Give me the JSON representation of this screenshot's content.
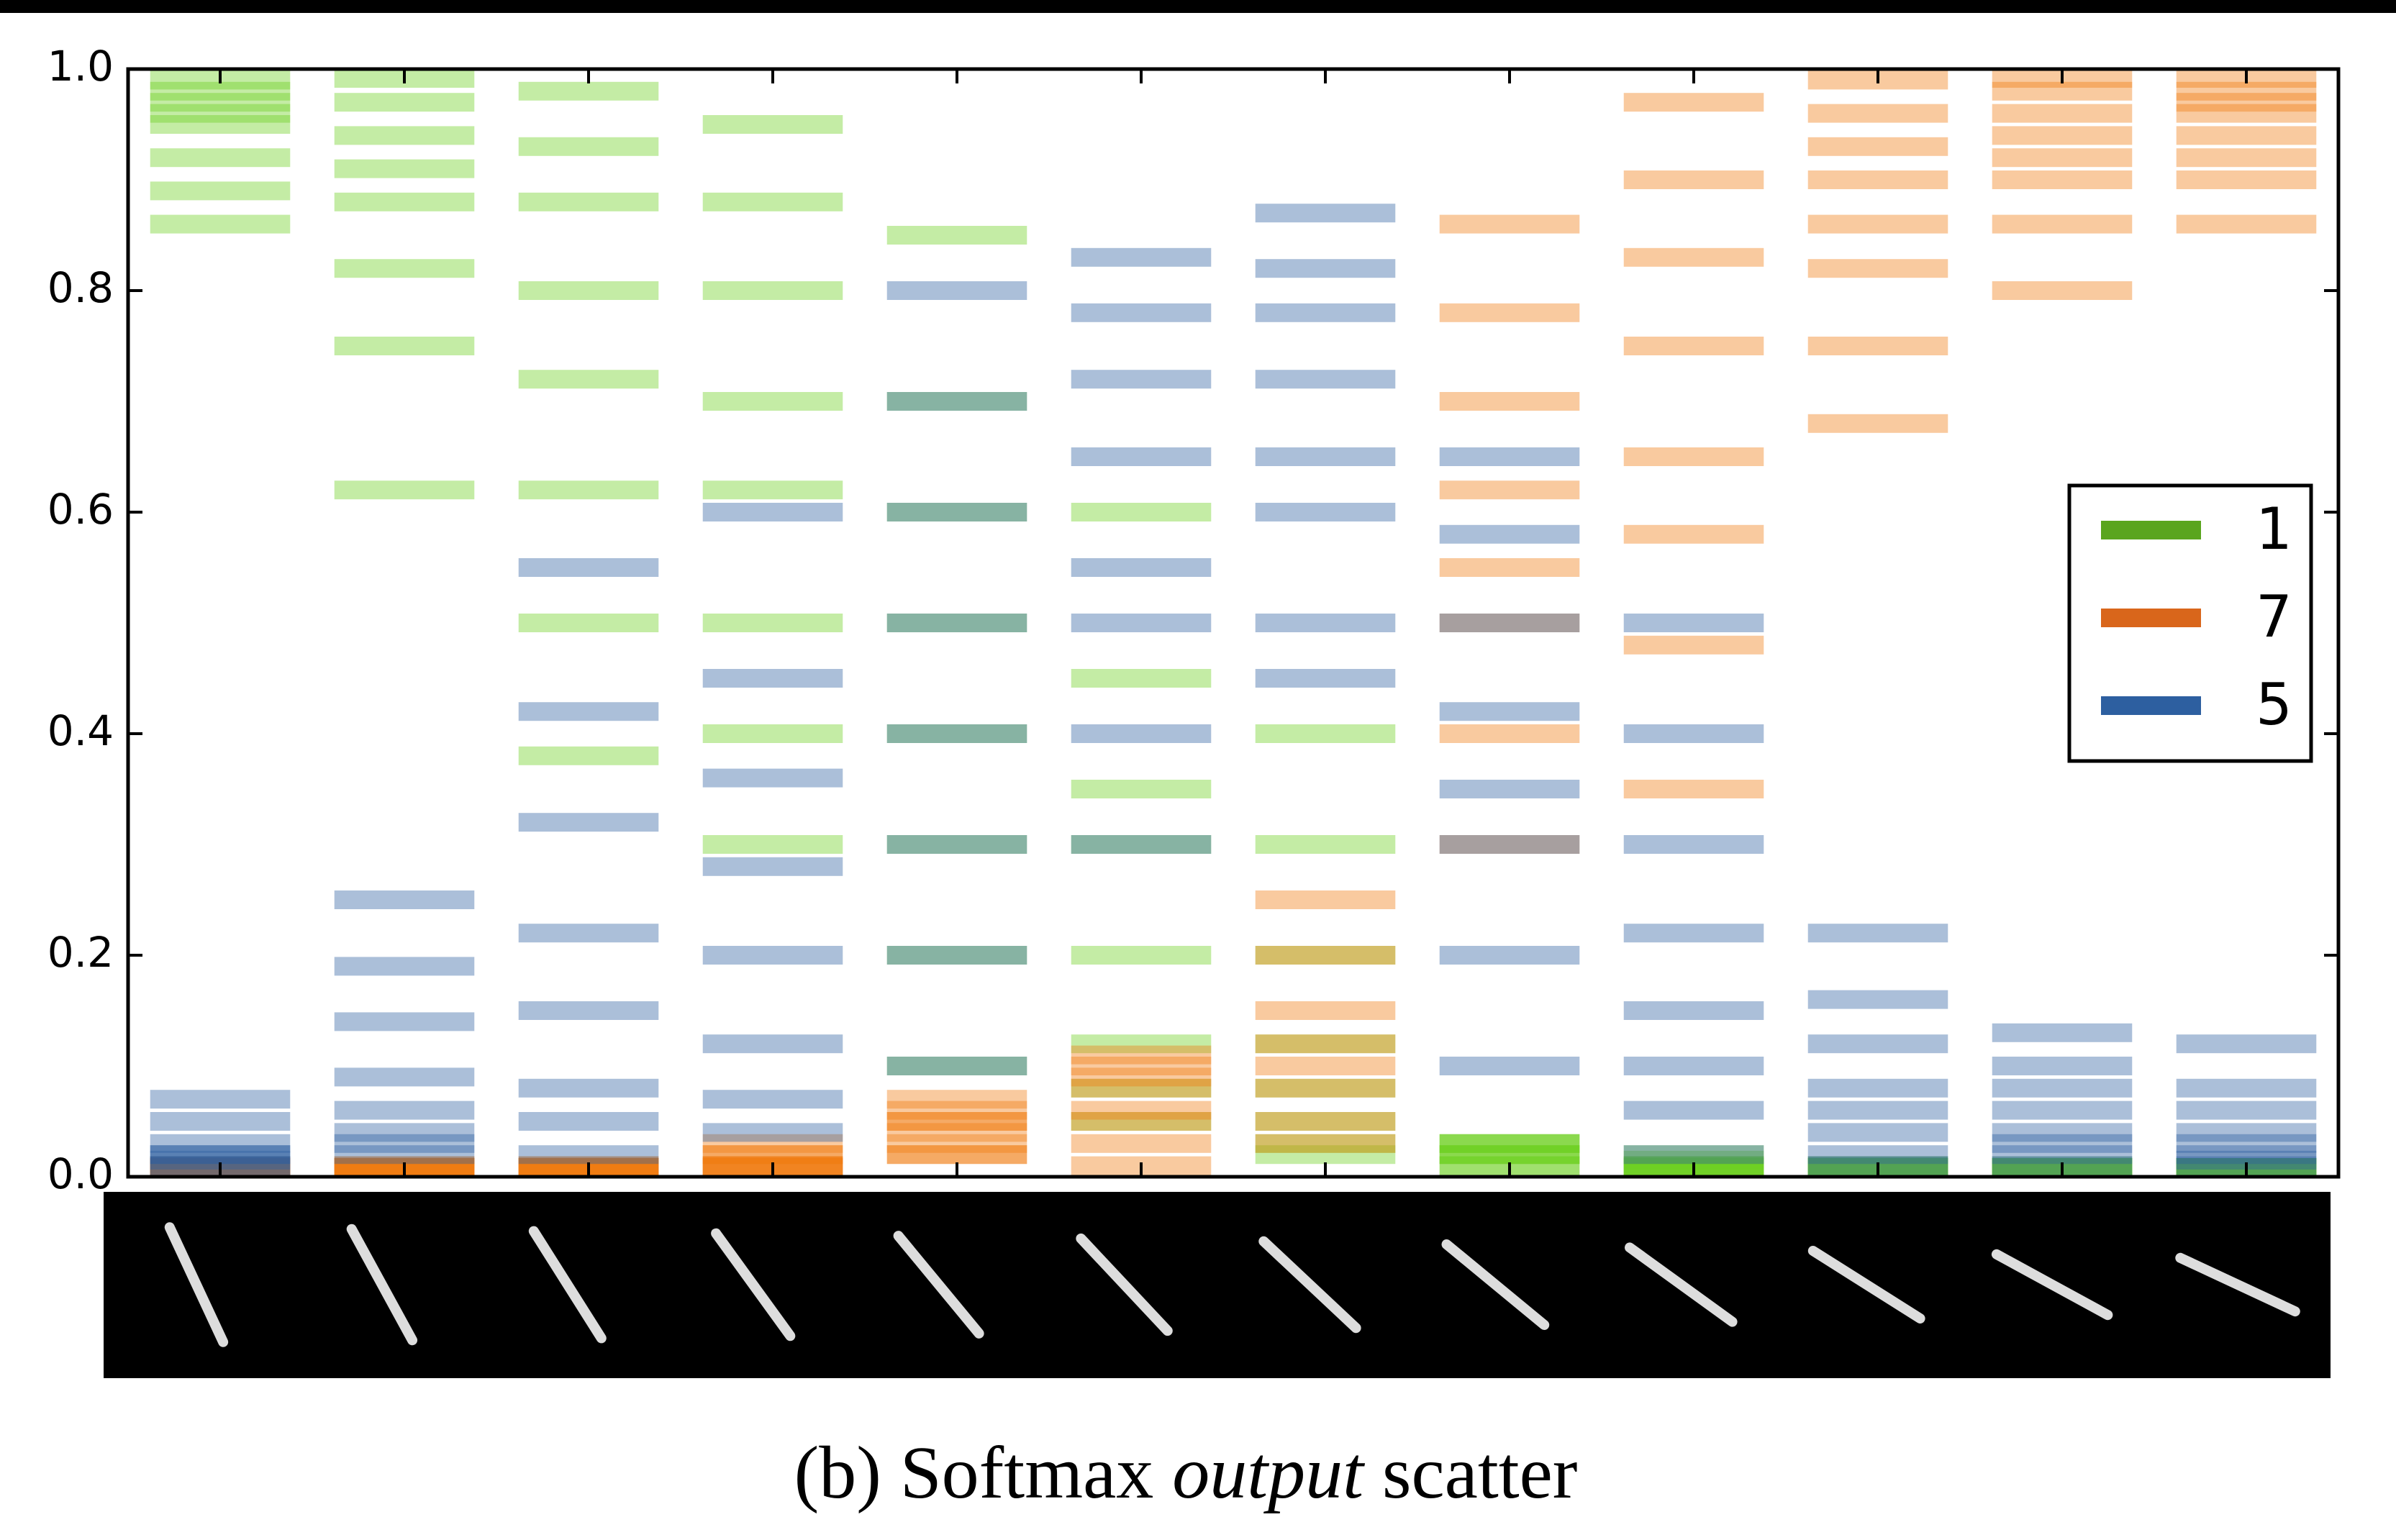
{
  "chart_data": {
    "type": "scatter",
    "caption": {
      "prefix": "(b) Softmax",
      "emphasis": "output",
      "suffix": "scatter"
    },
    "ylim": [
      0,
      1
    ],
    "yticks": [
      {
        "value": 0,
        "label": "0.0"
      },
      0.2,
      0.4,
      0.6,
      0.8,
      {
        "value": 1,
        "label": "1.0"
      }
    ],
    "legend": "right",
    "series": [
      {
        "name": "1",
        "color": "#6ccf1d",
        "legend_color": "#5aa51e",
        "values": [
          [
            0.99,
            0.98,
            0.97,
            0.96,
            0.95,
            0.92,
            0.89,
            0.86
          ],
          [
            1.0,
            0.97,
            0.94,
            0.91,
            0.88,
            0.82,
            0.75,
            0.62
          ],
          [
            0.98,
            0.93,
            0.88,
            0.8,
            0.72,
            0.62,
            0.5,
            0.38
          ],
          [
            0.95,
            0.88,
            0.8,
            0.7,
            0.62,
            0.5,
            0.4,
            0.3
          ],
          [
            0.85,
            0.7,
            0.6,
            0.5,
            0.4,
            0.3,
            0.2,
            0.1
          ],
          [
            0.6,
            0.45,
            0.35,
            0.3,
            0.2,
            0.12,
            0.08,
            0.05
          ],
          [
            0.4,
            0.3,
            0.2,
            0.12,
            0.08,
            0.05,
            0.03,
            0.02
          ],
          [
            0.03,
            0.02,
            0.01,
            0.03,
            0.02,
            0.01,
            0.02,
            0.03
          ],
          [
            0.01,
            0.005,
            0.02,
            0.01,
            0.0,
            0.01,
            0.015,
            0.0
          ],
          [
            0.005,
            0.0,
            0.01,
            0.0,
            0.005,
            0.0,
            0.01,
            0.0
          ],
          [
            0.0,
            0.005,
            0.0,
            0.01,
            0.0,
            0.005,
            0.0,
            0.005
          ],
          [
            0.0,
            0.005,
            0.0,
            0.0,
            0.005,
            0.0,
            0.0,
            0.005
          ]
        ]
      },
      {
        "name": "7",
        "color": "#f07a10",
        "legend_color": "#d9661b",
        "values": [
          [
            0.0,
            0.005,
            0.0,
            0.01,
            0.0,
            0.005,
            0.01,
            0.0
          ],
          [
            0.0,
            0.01,
            0.0,
            0.005,
            0.0,
            0.01,
            0.0,
            0.005
          ],
          [
            0.0,
            0.005,
            0.01,
            0.0,
            0.01,
            0.0,
            0.005,
            0.0
          ],
          [
            0.01,
            0.02,
            0.0,
            0.03,
            0.01,
            0.02,
            0.0,
            0.01
          ],
          [
            0.02,
            0.04,
            0.05,
            0.06,
            0.03,
            0.07,
            0.05,
            0.02
          ],
          [
            0.01,
            0.05,
            0.08,
            0.1,
            0.11,
            0.06,
            0.03,
            0.09
          ],
          [
            0.05,
            0.1,
            0.15,
            0.2,
            0.25,
            0.08,
            0.03,
            0.12
          ],
          [
            0.3,
            0.4,
            0.5,
            0.55,
            0.62,
            0.7,
            0.78,
            0.86
          ],
          [
            0.35,
            0.48,
            0.58,
            0.65,
            0.75,
            0.83,
            0.9,
            0.97
          ],
          [
            0.99,
            0.96,
            0.93,
            0.9,
            0.86,
            0.82,
            0.75,
            0.68
          ],
          [
            1.0,
            0.98,
            0.96,
            0.94,
            0.92,
            0.9,
            0.86,
            0.8
          ],
          [
            1.0,
            0.98,
            0.97,
            0.96,
            0.94,
            0.92,
            0.9,
            0.86
          ]
        ]
      },
      {
        "name": "5",
        "color": "#2d5fa0",
        "legend_color": "#2d5fa0",
        "values": [
          [
            0.01,
            0.015,
            0.02,
            0.01,
            0.03,
            0.05,
            0.07,
            0.02
          ],
          [
            0.02,
            0.03,
            0.04,
            0.06,
            0.09,
            0.14,
            0.19,
            0.25
          ],
          [
            0.02,
            0.05,
            0.08,
            0.15,
            0.22,
            0.32,
            0.42,
            0.55
          ],
          [
            0.04,
            0.07,
            0.12,
            0.2,
            0.28,
            0.36,
            0.45,
            0.6
          ],
          [
            0.1,
            0.2,
            0.3,
            0.4,
            0.5,
            0.6,
            0.7,
            0.8
          ],
          [
            0.3,
            0.4,
            0.5,
            0.55,
            0.65,
            0.72,
            0.78,
            0.83
          ],
          [
            0.45,
            0.5,
            0.6,
            0.65,
            0.72,
            0.78,
            0.82,
            0.87
          ],
          [
            0.1,
            0.2,
            0.3,
            0.35,
            0.42,
            0.5,
            0.58,
            0.65
          ],
          [
            0.02,
            0.06,
            0.1,
            0.15,
            0.22,
            0.3,
            0.4,
            0.5
          ],
          [
            0.01,
            0.02,
            0.04,
            0.06,
            0.08,
            0.12,
            0.16,
            0.22
          ],
          [
            0.01,
            0.02,
            0.03,
            0.04,
            0.06,
            0.08,
            0.1,
            0.13
          ],
          [
            0.01,
            0.015,
            0.02,
            0.03,
            0.04,
            0.06,
            0.08,
            0.12
          ]
        ]
      }
    ]
  }
}
